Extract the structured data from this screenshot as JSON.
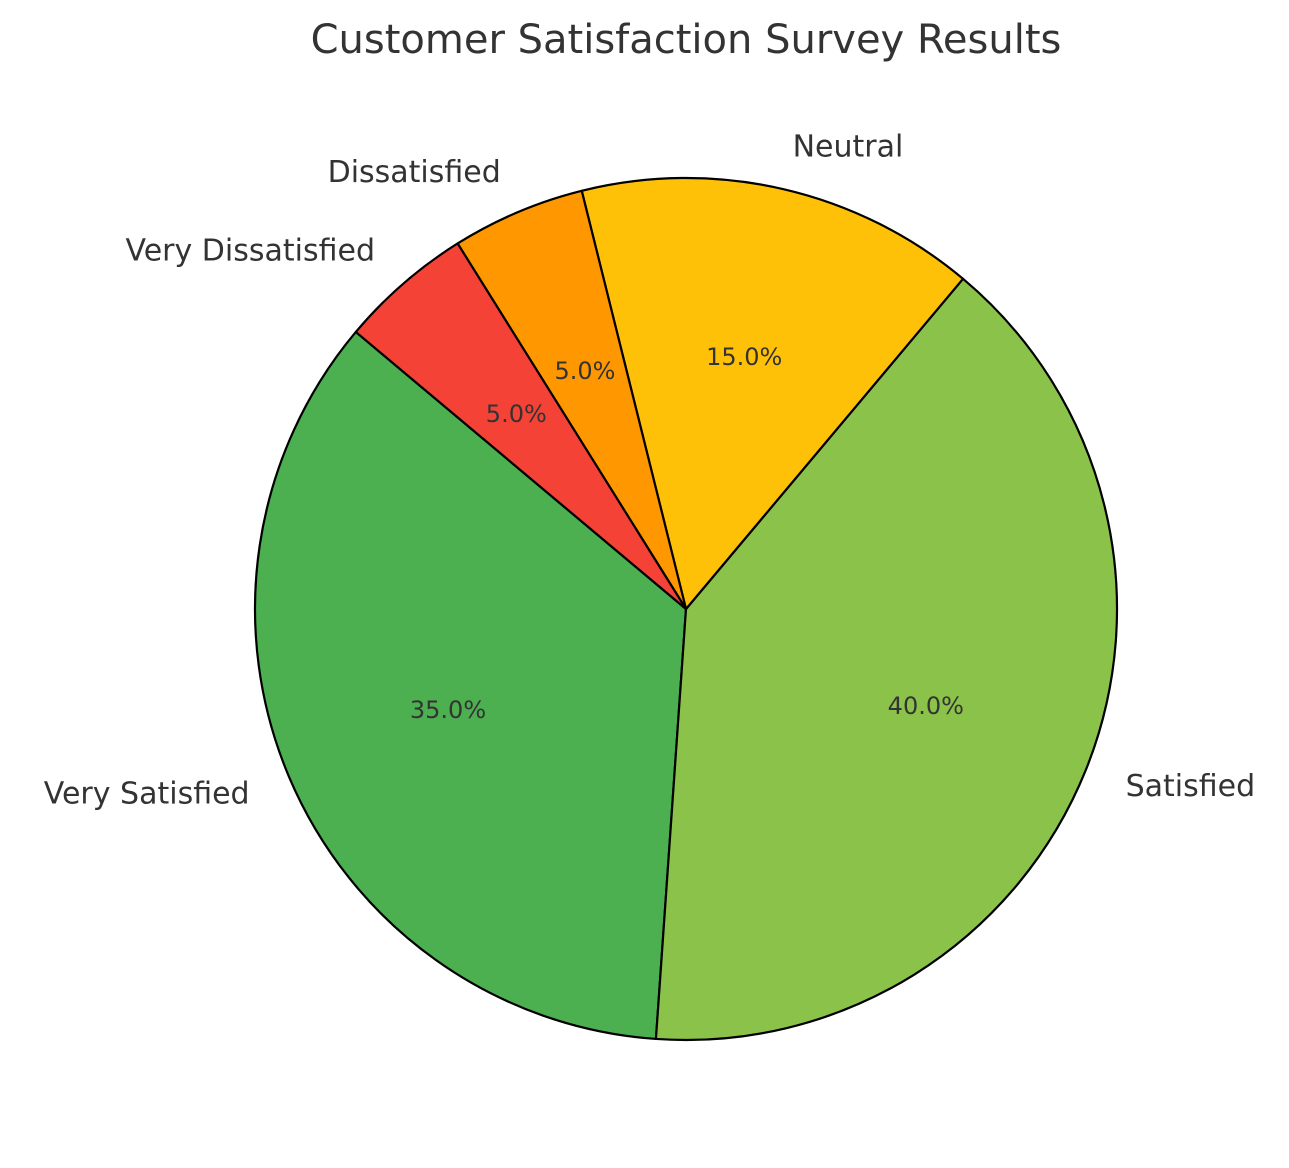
{
  "chart_data": {
    "type": "pie",
    "title": "Customer Satisfaction Survey Results",
    "categories": [
      "Very Satisfied",
      "Satisfied",
      "Neutral",
      "Dissatisfied",
      "Very Dissatisfied"
    ],
    "values": [
      35,
      40,
      15,
      5,
      5
    ],
    "percent_labels": [
      "35.0%",
      "40.0%",
      "15.0%",
      "5.0%",
      "5.0%"
    ],
    "colors": [
      "#4caf50",
      "#8bc34a",
      "#ffc107",
      "#ff9800",
      "#f44336"
    ],
    "start_angle_deg": 140,
    "direction": "counterclockwise",
    "edge_color": "#000000"
  }
}
